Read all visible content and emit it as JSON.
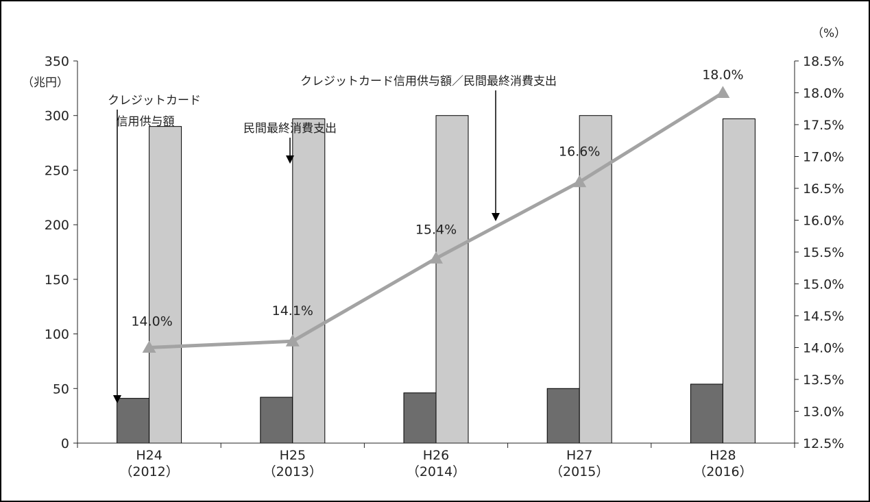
{
  "chart_data": {
    "type": "bar",
    "categories": [
      "H24\n（2012）",
      "H25\n（2013）",
      "H26\n（2014）",
      "H27\n（2015）",
      "H28\n（2016）"
    ],
    "left_axis": {
      "unit": "（兆円）",
      "ylim": [
        0,
        350
      ],
      "ticks": [
        "0",
        "50",
        "100",
        "150",
        "200",
        "250",
        "300",
        "350"
      ]
    },
    "right_axis": {
      "unit": "（%）",
      "ylim": [
        12.5,
        18.5
      ],
      "ticks": [
        "12.5%",
        "13.0%",
        "13.5%",
        "14.0%",
        "14.5%",
        "15.0%",
        "15.5%",
        "16.0%",
        "16.5%",
        "17.0%",
        "17.5%",
        "18.0%",
        "18.5%"
      ]
    },
    "series": [
      {
        "kind": "bar",
        "axis": "left",
        "values": [
          41,
          42,
          46,
          50,
          54
        ]
      },
      {
        "kind": "bar",
        "axis": "left",
        "values": [
          290,
          297,
          300,
          300,
          297
        ]
      },
      {
        "kind": "line",
        "axis": "right",
        "values": [
          14.0,
          14.1,
          15.4,
          16.6,
          18.0
        ],
        "data_labels": [
          "14.0%",
          "14.1%",
          "15.4%",
          "16.6%",
          "18.0%"
        ]
      }
    ],
    "annotations": {
      "credit": [
        "クレジットカード",
        "信用供与額"
      ],
      "consumption": "民間最終消費支出",
      "ratio": "クレジットカード信用供与額／民間最終消費支出"
    },
    "grid": false,
    "legend": "none"
  },
  "colors": {
    "credit_bar": "#6d6d6d",
    "consumption_bar": "#cbcbcb",
    "ratio_line": "#a3a3a3",
    "axis": "#222222",
    "frame": "#000000"
  }
}
